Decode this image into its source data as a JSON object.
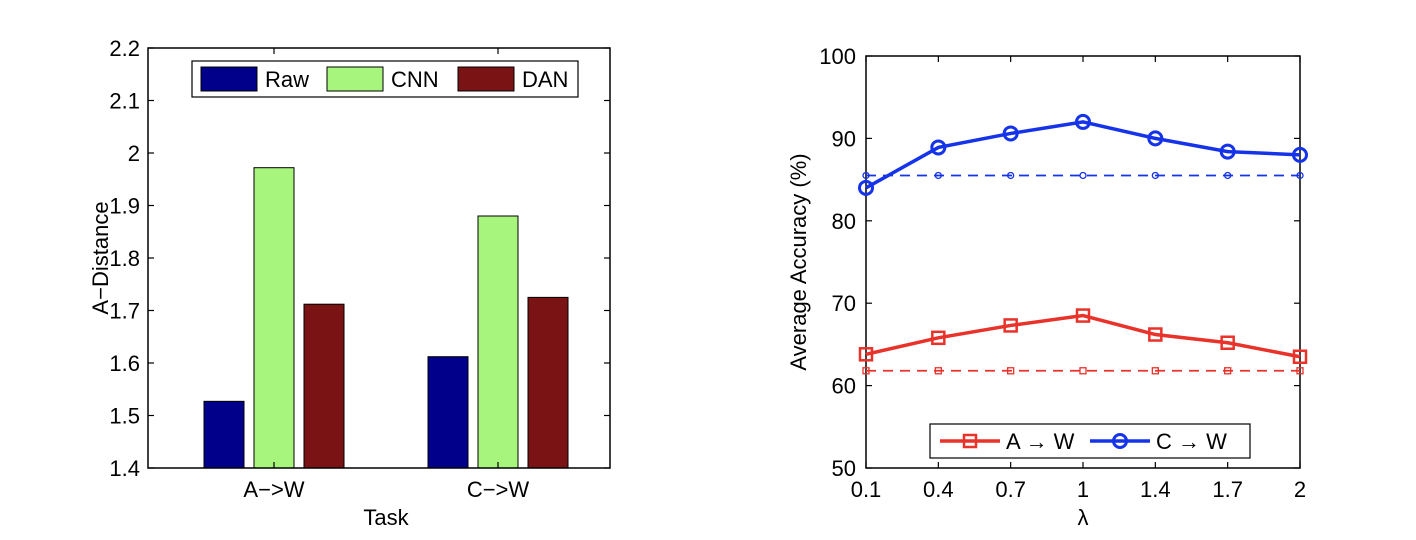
{
  "chart_data": [
    {
      "type": "bar",
      "xlabel": "Task",
      "ylabel": "A−Distance",
      "categories": [
        "A−>W",
        "C−>W"
      ],
      "ylim": [
        1.4,
        2.2
      ],
      "yticks": [
        "1.4",
        "1.5",
        "1.6",
        "1.7",
        "1.8",
        "1.9",
        "2",
        "2.1",
        "2.2"
      ],
      "legend_position": "top",
      "grid": false,
      "series": [
        {
          "name": "Raw",
          "color": "#00008B",
          "values": [
            1.527,
            1.612
          ]
        },
        {
          "name": "CNN",
          "color": "#A8F57E",
          "values": [
            1.972,
            1.88
          ]
        },
        {
          "name": "DAN",
          "color": "#7A1414",
          "values": [
            1.712,
            1.725
          ]
        }
      ]
    },
    {
      "type": "line",
      "xlabel": "λ",
      "ylabel": "Average Accuracy (%)",
      "x": [
        "0.1",
        "0.4",
        "0.7",
        "1",
        "1.4",
        "1.7",
        "2"
      ],
      "ylim": [
        50,
        100
      ],
      "yticks": [
        "50",
        "60",
        "70",
        "80",
        "90",
        "100"
      ],
      "legend_position": "bottom",
      "grid": false,
      "series": [
        {
          "name": "A → W",
          "color": "#E8322A",
          "marker": "square",
          "line": "solid",
          "values": [
            63.8,
            65.8,
            67.3,
            68.5,
            66.2,
            65.2,
            63.5
          ]
        },
        {
          "name": "C → W",
          "color": "#1533E8",
          "marker": "circle",
          "line": "solid",
          "values": [
            84.0,
            88.9,
            90.6,
            92.0,
            90.0,
            88.4,
            88.0
          ]
        },
        {
          "name": "",
          "color": "#E8322A",
          "marker": "square-small",
          "line": "dashed",
          "values": [
            61.8,
            61.8,
            61.8,
            61.8,
            61.8,
            61.8,
            61.8
          ]
        },
        {
          "name": "",
          "color": "#1533E8",
          "marker": "circle-small",
          "line": "dashed",
          "values": [
            85.5,
            85.5,
            85.5,
            85.5,
            85.5,
            85.5,
            85.5
          ]
        }
      ]
    }
  ]
}
